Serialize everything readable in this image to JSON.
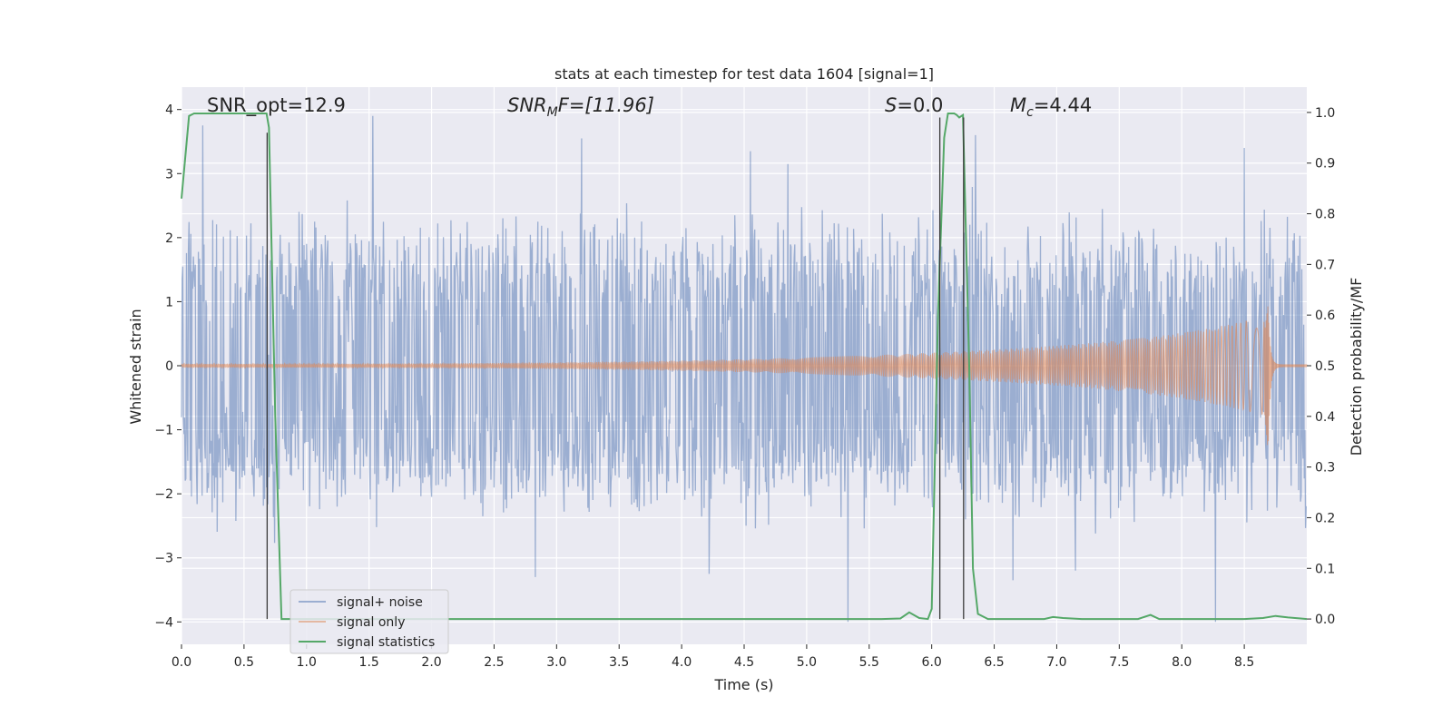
{
  "chart_data": {
    "type": "line",
    "title": "stats at each timestep for test data 1604 [signal=1]",
    "xlabel": "Time (s)",
    "ylabel": "Whitened strain",
    "y2label": "Detection probability/MF",
    "xlim": [
      0.0,
      9.0
    ],
    "ylim": [
      -4.35,
      4.35
    ],
    "y2lim": [
      -0.05,
      1.05
    ],
    "grid": true,
    "xticks": [
      "0.0",
      "0.5",
      "1.0",
      "1.5",
      "2.0",
      "2.5",
      "3.0",
      "3.5",
      "4.0",
      "4.5",
      "5.0",
      "5.5",
      "6.0",
      "6.5",
      "7.0",
      "7.5",
      "8.0",
      "8.5"
    ],
    "xtick_values": [
      0.0,
      0.5,
      1.0,
      1.5,
      2.0,
      2.5,
      3.0,
      3.5,
      4.0,
      4.5,
      5.0,
      5.5,
      6.0,
      6.5,
      7.0,
      7.5,
      8.0,
      8.5
    ],
    "yticks": [
      "−4",
      "−3",
      "−2",
      "−1",
      "0",
      "1",
      "2",
      "3",
      "4"
    ],
    "ytick_values": [
      -4,
      -3,
      -2,
      -1,
      0,
      1,
      2,
      3,
      4
    ],
    "y2ticks": [
      "0.0",
      "0.1",
      "0.2",
      "0.3",
      "0.4",
      "0.5",
      "0.6",
      "0.7",
      "0.8",
      "0.9",
      "1.0"
    ],
    "y2tick_values": [
      0.0,
      0.1,
      0.2,
      0.3,
      0.4,
      0.5,
      0.6,
      0.7,
      0.8,
      0.9,
      1.0
    ],
    "annotations": {
      "snr_opt": "SNR_opt=12.9",
      "snr_mf_main": "SNR",
      "snr_mf_sub": "M",
      "snr_mf_rest": "F=[11.96]",
      "s_main": "S",
      "s_rest": "=0.0",
      "mc_main": "M",
      "mc_sub": "c",
      "mc_rest": "=4.44"
    },
    "legend_placement": "lower-left",
    "series": [
      {
        "name": "signal+ noise",
        "color": "#4c72b0",
        "style": "noise",
        "axis": "left",
        "duration": 9.0,
        "samples": 1800,
        "envelope": 1.55,
        "spike_points": [
          [
            0.17,
            3.75
          ],
          [
            1.53,
            3.9
          ],
          [
            2.83,
            -3.3
          ],
          [
            3.2,
            3.55
          ],
          [
            4.22,
            -3.25
          ],
          [
            4.55,
            3.35
          ],
          [
            4.85,
            3.15
          ],
          [
            5.33,
            -4.0
          ],
          [
            6.35,
            3.6
          ],
          [
            6.65,
            -3.35
          ],
          [
            7.15,
            -3.2
          ],
          [
            8.27,
            -4.0
          ],
          [
            8.5,
            3.4
          ]
        ]
      },
      {
        "name": "signal only",
        "color": "#dd8452",
        "style": "chirp",
        "axis": "left",
        "t_merger": 8.69,
        "peak_amplitude": 0.95,
        "min_amplitude": -1.35,
        "start_amplitude": 0.03,
        "end_amplitude": 0.55
      },
      {
        "name": "signal statistics",
        "color": "#55a868",
        "style": "line",
        "axis": "right",
        "x": [
          0.0,
          0.06,
          0.1,
          0.2,
          0.4,
          0.6,
          0.68,
          0.7,
          0.75,
          0.8,
          0.82,
          1.0,
          2.0,
          3.0,
          4.0,
          5.0,
          5.6,
          5.75,
          5.82,
          5.9,
          5.97,
          6.0,
          6.05,
          6.1,
          6.13,
          6.18,
          6.2,
          6.22,
          6.25,
          6.3,
          6.33,
          6.37,
          6.45,
          6.6,
          6.9,
          6.97,
          7.05,
          7.2,
          7.65,
          7.75,
          7.82,
          8.0,
          8.5,
          8.65,
          8.75,
          8.85,
          8.95,
          9.0
        ],
        "y": [
          0.83,
          0.993,
          0.998,
          0.998,
          0.998,
          0.998,
          0.998,
          0.97,
          0.4,
          0.0,
          0.0,
          0.0,
          0.0,
          0.0,
          0.0,
          0.0,
          0.0,
          0.001,
          0.013,
          0.002,
          0.0,
          0.02,
          0.6,
          0.95,
          0.998,
          0.998,
          0.995,
          0.99,
          0.995,
          0.5,
          0.1,
          0.01,
          0.0,
          0.0,
          0.0,
          0.004,
          0.002,
          0.0,
          0.0,
          0.008,
          0.0,
          0.0,
          0.0,
          0.002,
          0.006,
          0.003,
          0.001,
          0.0
        ]
      }
    ],
    "vertical_lines": [
      {
        "x": 0.685,
        "y_from": 0.0,
        "y_to": 0.96,
        "color": "#3a3a3a"
      },
      {
        "x": 6.065,
        "y_from": 0.0,
        "y_to": 0.99,
        "color": "#3a3a3a"
      },
      {
        "x": 6.255,
        "y_from": 0.0,
        "y_to": 0.99,
        "color": "#3a3a3a"
      }
    ]
  }
}
